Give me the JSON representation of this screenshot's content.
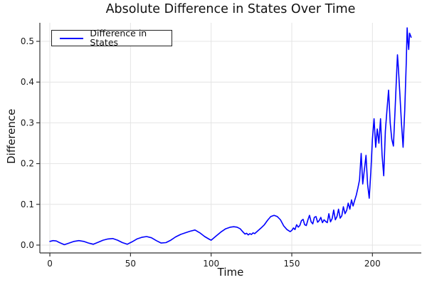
{
  "chart_data": {
    "type": "line",
    "title": "Absolute Difference in States Over Time",
    "xlabel": "Time",
    "ylabel": "Difference",
    "xlim": [
      -6.2,
      230.3
    ],
    "ylim": [
      -0.0193,
      0.5455
    ],
    "grid": true,
    "x_ticks": [
      0,
      50,
      100,
      150,
      200
    ],
    "x_tick_labels": [
      "0",
      "50",
      "100",
      "150",
      "200"
    ],
    "y_ticks": [
      0.0,
      0.1,
      0.2,
      0.3,
      0.4,
      0.5
    ],
    "y_tick_labels": [
      "0.0",
      "0.1",
      "0.2",
      "0.3",
      "0.4",
      "0.5"
    ],
    "legend": {
      "position": "top-left",
      "entries": [
        {
          "label": "Difference in States",
          "color": "#0000ff"
        }
      ]
    },
    "colors": {
      "line": "#0000ff",
      "grid": "#e4e4e4",
      "axis": "#333333",
      "tick_text": "#1a1a1a",
      "background": "#ffffff"
    },
    "series": [
      {
        "name": "Difference in States",
        "color": "#0000ff",
        "x": [
          0,
          2,
          4,
          6,
          9,
          12,
          15,
          18,
          21,
          24,
          27,
          30,
          33,
          36,
          39,
          42,
          45,
          48,
          51,
          54,
          57,
          60,
          63,
          66,
          69,
          72,
          75,
          78,
          81,
          84,
          87,
          90,
          93,
          96,
          99,
          100,
          103,
          106,
          109,
          112,
          114,
          116,
          118,
          120,
          121,
          122,
          123,
          124,
          125,
          126,
          127,
          129,
          131,
          133,
          135,
          137,
          139,
          141,
          143,
          145,
          147,
          149,
          150,
          151,
          152,
          153,
          154,
          155,
          156,
          157,
          158,
          159,
          160,
          161,
          162,
          163,
          164,
          165,
          166,
          167,
          168,
          169,
          170,
          171,
          172,
          173,
          174,
          175,
          176,
          177,
          178,
          179,
          180,
          181,
          182,
          183,
          184,
          185,
          186,
          187,
          188,
          189,
          190,
          191,
          192,
          193,
          194,
          195,
          196,
          197,
          198,
          199,
          200,
          201,
          202,
          203,
          204,
          205,
          206,
          207,
          208,
          209,
          210,
          211,
          212,
          213,
          214,
          215,
          215.5,
          216,
          217,
          218,
          219,
          220,
          221,
          221.5,
          222,
          222.5,
          223,
          224
        ],
        "y": [
          0.009,
          0.011,
          0.01,
          0.006,
          0.001,
          0.005,
          0.009,
          0.011,
          0.009,
          0.005,
          0.002,
          0.007,
          0.012,
          0.015,
          0.016,
          0.012,
          0.006,
          0.002,
          0.008,
          0.015,
          0.019,
          0.021,
          0.018,
          0.011,
          0.005,
          0.006,
          0.012,
          0.02,
          0.026,
          0.03,
          0.034,
          0.037,
          0.03,
          0.021,
          0.014,
          0.012,
          0.022,
          0.032,
          0.04,
          0.044,
          0.045,
          0.044,
          0.04,
          0.031,
          0.027,
          0.029,
          0.025,
          0.028,
          0.026,
          0.03,
          0.028,
          0.035,
          0.042,
          0.05,
          0.061,
          0.07,
          0.073,
          0.07,
          0.062,
          0.047,
          0.038,
          0.033,
          0.036,
          0.042,
          0.038,
          0.05,
          0.044,
          0.048,
          0.06,
          0.063,
          0.05,
          0.048,
          0.062,
          0.073,
          0.057,
          0.052,
          0.068,
          0.07,
          0.056,
          0.06,
          0.068,
          0.055,
          0.062,
          0.058,
          0.055,
          0.077,
          0.057,
          0.065,
          0.086,
          0.062,
          0.07,
          0.088,
          0.066,
          0.072,
          0.094,
          0.077,
          0.085,
          0.103,
          0.088,
          0.111,
          0.096,
          0.11,
          0.123,
          0.14,
          0.16,
          0.225,
          0.15,
          0.185,
          0.22,
          0.15,
          0.115,
          0.18,
          0.26,
          0.31,
          0.24,
          0.285,
          0.25,
          0.31,
          0.22,
          0.17,
          0.28,
          0.33,
          0.38,
          0.3,
          0.26,
          0.243,
          0.33,
          0.42,
          0.467,
          0.44,
          0.37,
          0.3,
          0.24,
          0.33,
          0.45,
          0.533,
          0.5,
          0.48,
          0.52,
          0.51
        ]
      }
    ]
  }
}
